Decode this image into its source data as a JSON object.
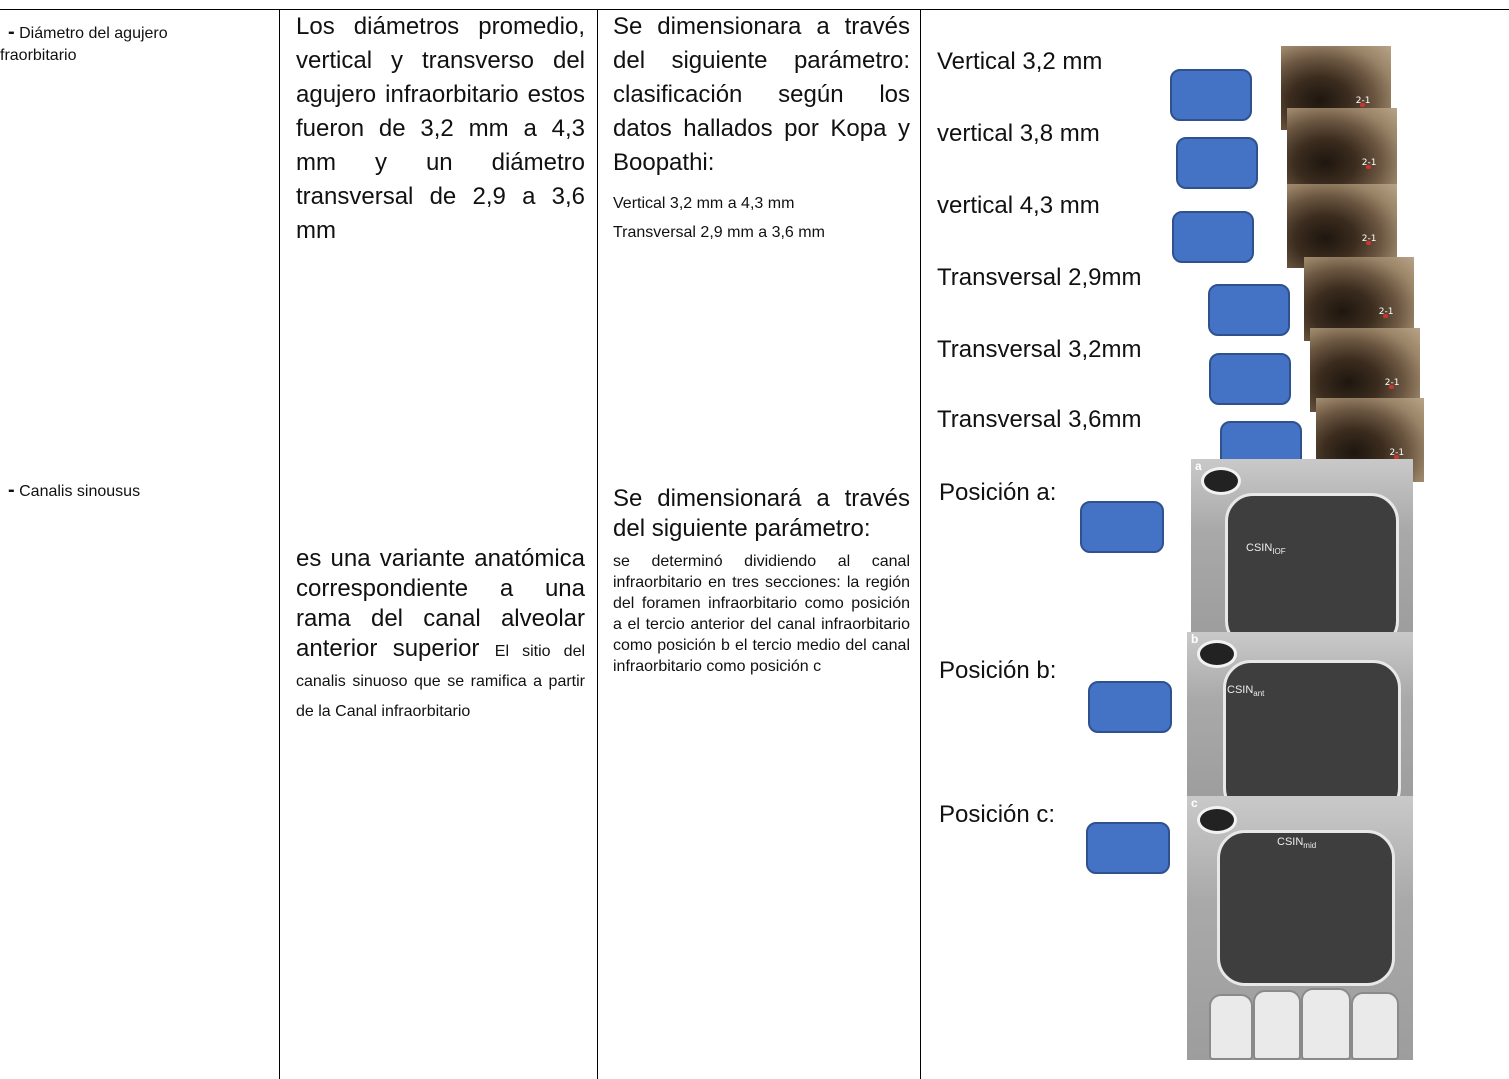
{
  "col1": {
    "row1_dash": "-",
    "row1_text": "Diámetro del agujero",
    "row1_text_cont": "fraorbitario",
    "row2_dash": "-",
    "row2_text": "Canalis sinousus"
  },
  "col2": {
    "row1_text": "Los diámetros promedio, vertical y transverso del agujero infraorbitario estos fueron de 3,2 mm a 4,3 mm y un diámetro transversal de 2,9 a 3,6 mm",
    "row2_large": "es una variante anatómica correspondiente a una rama del canal alveolar anterior superior",
    "row2_small": "El sitio del canalis sinuoso que se ramifica a partir de la Canal infraorbitario"
  },
  "col3": {
    "row1_large": "Se dimensionara a través del siguiente parámetro: clasificación según los datos hallados por Kopa y Boopathi:",
    "row1_small_1": "Vertical 3,2 mm a 4,3 mm",
    "row1_small_2": "Transversal 2,9 mm a 3,6 mm",
    "row2_large": "Se dimensionará a través del siguiente parámetro:",
    "row2_small": "se determinó dividiendo al canal infraorbitario en tres secciones: la región del foramen infraorbitario como posición a el tercio anterior del canal infraorbitario como posición b el tercio medio del canal infraorbitario como posición c"
  },
  "col4": {
    "measures": [
      "Vertical 3,2 mm",
      "vertical 3,8 mm",
      "vertical 4,3 mm",
      "Transversal 2,9mm",
      "Transversal 3,2mm",
      "Transversal 3,6mm"
    ],
    "positions": [
      "Posición a:",
      "Posición b:",
      "Posición c:"
    ],
    "ct_letters": [
      "a",
      "b",
      "c"
    ],
    "ct_labels": [
      "CSIN",
      "CSIN",
      "CSIN"
    ],
    "ct_subs": [
      "IOF",
      "ant",
      "mid"
    ],
    "photo_mark": "2-1"
  },
  "colors": {
    "button_fill": "#4472c4",
    "button_border": "#2f528f",
    "table_lines": "#000000"
  }
}
